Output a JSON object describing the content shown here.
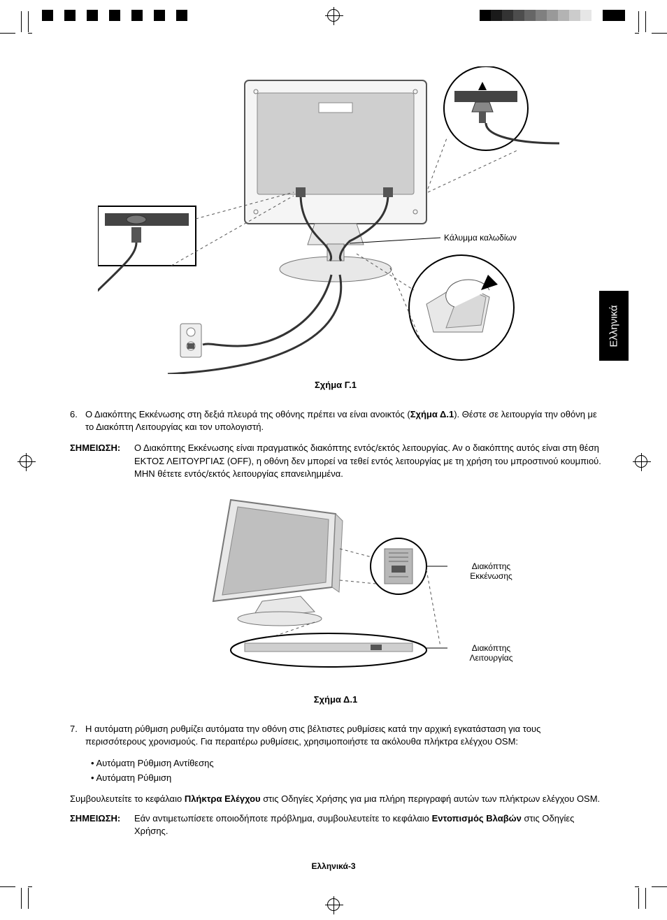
{
  "registration_swatches_left": [
    "#000000",
    "#ffffff",
    "#000000",
    "#ffffff",
    "#000000",
    "#ffffff",
    "#000000",
    "#ffffff",
    "#000000",
    "#ffffff",
    "#000000",
    "#ffffff",
    "#000000"
  ],
  "registration_swatches_right": [
    "#000000",
    "#1a1a1a",
    "#333333",
    "#4d4d4d",
    "#666666",
    "#808080",
    "#999999",
    "#b3b3b3",
    "#cccccc",
    "#e6e6e6",
    "#ffffff",
    "#000000",
    "#000000"
  ],
  "language_tab": "Ελληνικά",
  "figure_c": {
    "caption": "Σχήμα Γ.1",
    "callout_cable_cover": "Κάλυμμα καλωδίων"
  },
  "step6": {
    "num": "6.",
    "text_before": "Ο Διακόπτης Εκκένωσης στη δεξιά πλευρά της οθόνης πρέπει να είναι ανοικτός (",
    "bold_ref": "Σχήμα Δ.1",
    "text_after": "). Θέστε σε λειτουργία την οθόνη με το Διακόπτη Λειτουργίας και τον υπολογιστή."
  },
  "note1": {
    "label": "ΣΗΜΕΙΩΣΗ:",
    "text": "Ο Διακόπτης Εκκένωσης είναι πραγματικός διακόπτης εντός/εκτός λειτουργίας. Αν ο διακόπτης αυτός είναι στη θέση ΕΚΤΟΣ ΛΕΙΤΟΥΡΓΙΑΣ (OFF), η οθόνη δεν μπορεί να τεθεί εντός λειτουργίας με τη χρήση του μπροστινού κουμπιού. ΜΗΝ θέτετε εντός/εκτός λειτουργίας επανειλημμένα."
  },
  "figure_d": {
    "caption": "Σχήμα Δ.1",
    "callout_vacation": "Διακόπτης Εκκένωσης",
    "callout_power": "Διακόπτης Λειτουργίας"
  },
  "step7": {
    "num": "7.",
    "text": "Η αυτόματη ρύθμιση ρυθμίζει αυτόματα την οθόνη στις βέλτιστες ρυθμίσεις κατά την αρχική εγκατάσταση για τους περισσότερους χρονισμούς. Για περαιτέρω ρυθμίσεις, χρησιμοποιήστε τα ακόλουθα πλήκτρα ελέγχου OSM:"
  },
  "bullets": [
    "Αυτόματη Ρύθμιση Αντίθεσης",
    "Αυτόματη Ρύθμιση"
  ],
  "advice": {
    "pre": "Συμβουλευτείτε το κεφάλαιο ",
    "bold": "Πλήκτρα Ελέγχου",
    "post": " στις Οδηγίες Χρήσης για μια πλήρη περιγραφή αυτών των πλήκτρων ελέγχου OSM."
  },
  "note2": {
    "label": "ΣΗΜΕΙΩΣΗ:",
    "pre": "Εάν αντιμετωπίσετε οποιοδήποτε πρόβλημα, συμβουλευτείτε το κεφάλαιο ",
    "bold": "Εντοπισμός Βλαβών",
    "post": " στις Οδηγίες Χρήσης."
  },
  "page_footer": "Ελληνικά-3"
}
